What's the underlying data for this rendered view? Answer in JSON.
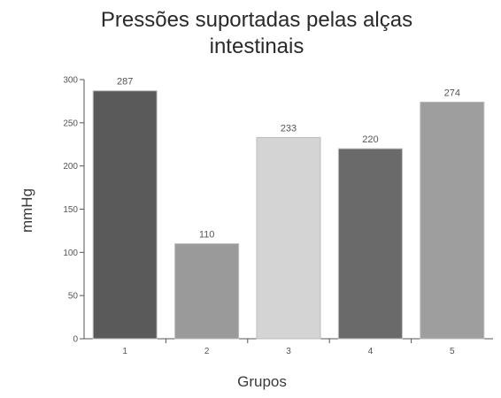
{
  "chart_data": {
    "type": "bar",
    "title_lines": [
      "Pressões suportadas pelas alças",
      "intestinais"
    ],
    "xlabel": "Grupos",
    "ylabel": "mmHg",
    "categories": [
      "1",
      "2",
      "3",
      "4",
      "5"
    ],
    "values": [
      287,
      110,
      233,
      220,
      274
    ],
    "data_labels": [
      "287",
      "110",
      "233",
      "220",
      "274"
    ],
    "yticks": [
      0,
      50,
      100,
      150,
      200,
      250,
      300
    ],
    "ylim": [
      0,
      300
    ],
    "bar_colors": [
      "#5a5a5a",
      "#9a9a9a",
      "#d4d4d4",
      "#6a6a6a",
      "#9e9e9e"
    ],
    "grid": false,
    "legend": "none"
  }
}
